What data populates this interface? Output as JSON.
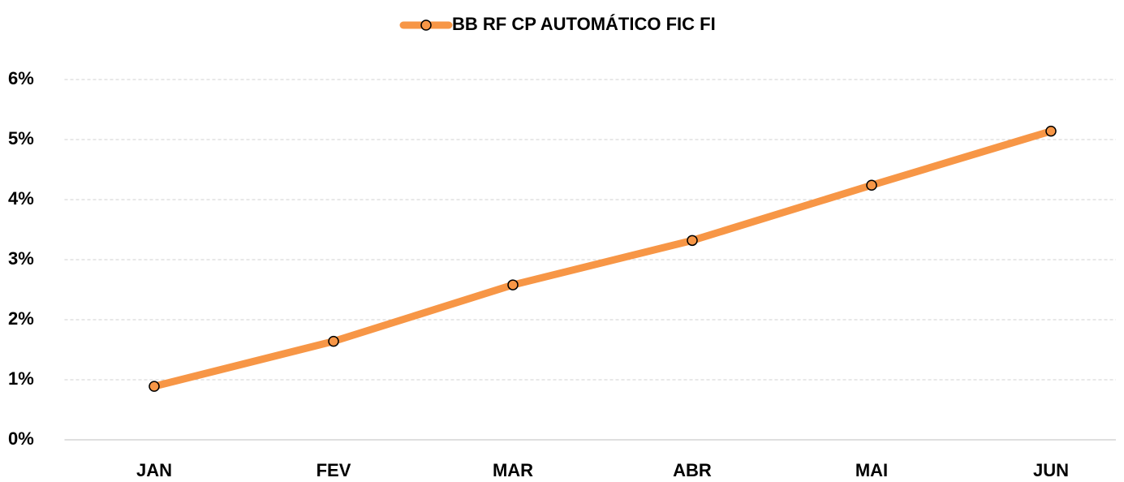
{
  "chart_data": {
    "type": "line",
    "categories": [
      "JAN",
      "FEV",
      "MAR",
      "ABR",
      "MAI",
      "JUN"
    ],
    "series": [
      {
        "name": "BB RF CP AUTOMÁTICO FIC FI",
        "color": "#f79646",
        "values": [
          0.89,
          1.64,
          2.58,
          3.32,
          4.24,
          5.14
        ]
      }
    ],
    "ylim": [
      0,
      6
    ],
    "yticks": [
      {
        "value": 0,
        "label": "0%"
      },
      {
        "value": 1,
        "label": "1%"
      },
      {
        "value": 2,
        "label": "2%"
      },
      {
        "value": 3,
        "label": "3%"
      },
      {
        "value": 4,
        "label": "4%"
      },
      {
        "value": 5,
        "label": "5%"
      },
      {
        "value": 6,
        "label": "6%"
      }
    ],
    "grid": true,
    "legend": "top"
  }
}
